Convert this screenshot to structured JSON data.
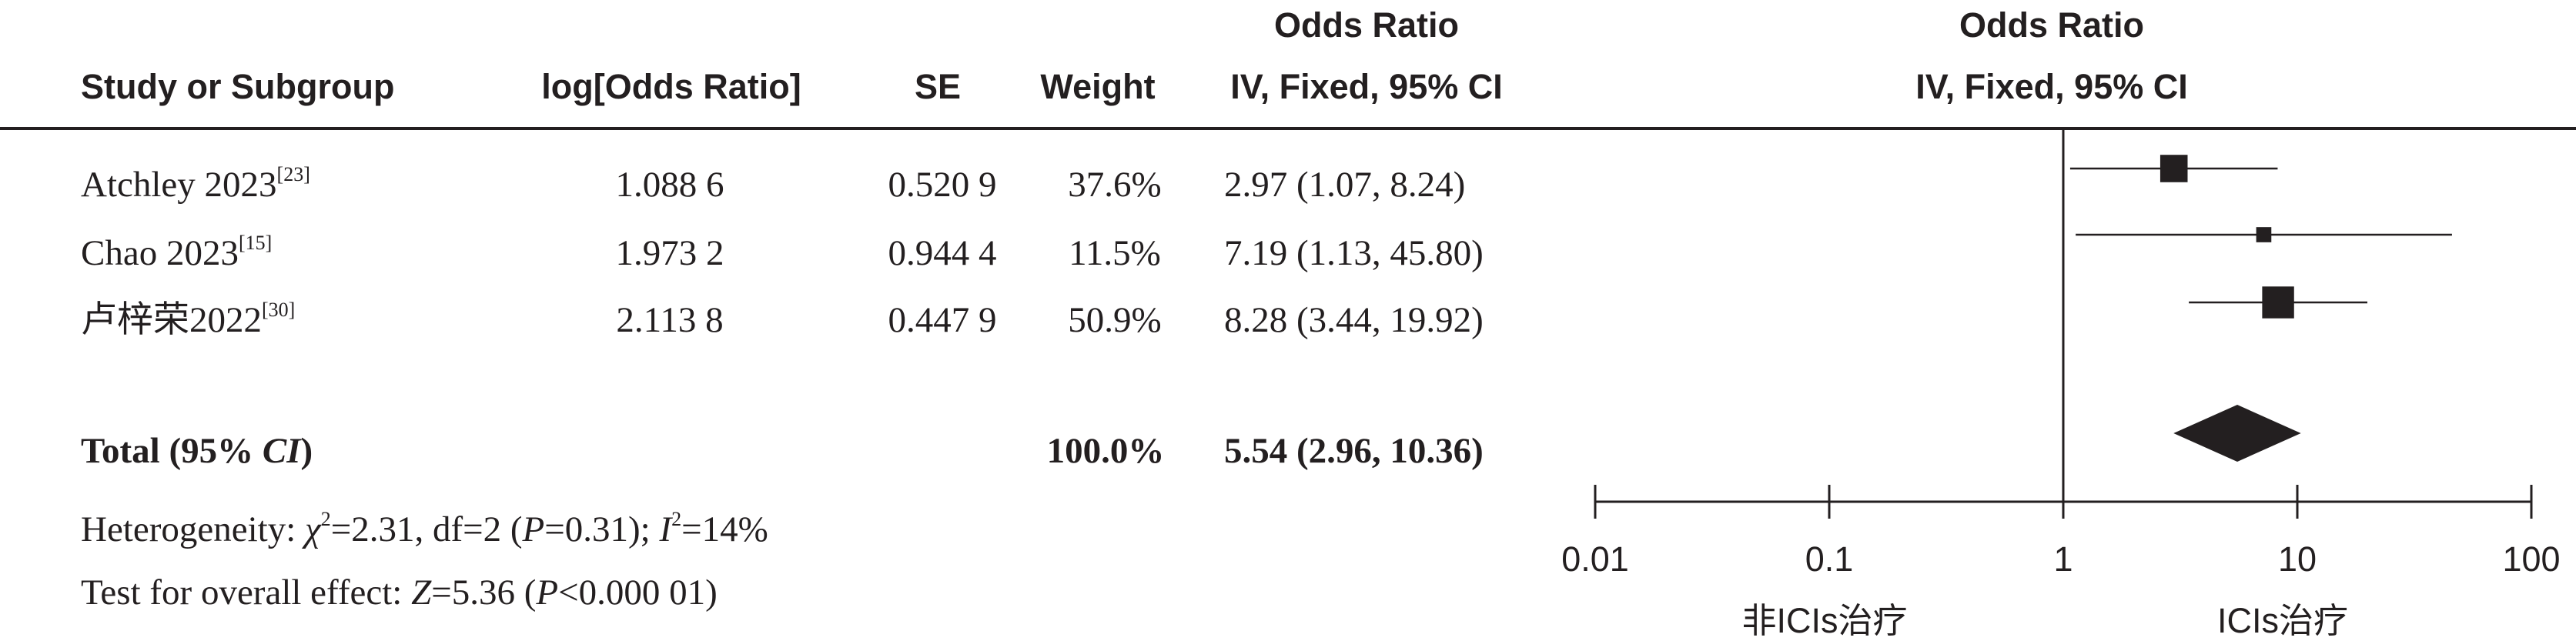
{
  "header": {
    "study_col": "Study or Subgroup",
    "logor_col": "log[Odds Ratio]",
    "se_col": "SE",
    "weight_col": "Weight",
    "or_col_line1": "Odds Ratio",
    "or_col_line2": "IV, Fixed, 95% CI",
    "plot_col_line1": "Odds Ratio",
    "plot_col_line2": "IV, Fixed, 95% CI"
  },
  "rows": [
    {
      "study": "Atchley 2023",
      "ref": "[23]",
      "logor": "1.088 6",
      "se": "0.520 9",
      "weight": "37.6%",
      "ci_text": "2.97 (1.07, 8.24)"
    },
    {
      "study": "Chao 2023",
      "ref": "[15]",
      "logor": "1.973 2",
      "se": "0.944 4",
      "weight": "11.5%",
      "ci_text": "7.19 (1.13, 45.80)"
    },
    {
      "study": "卢梓荣2022",
      "ref": "[30]",
      "logor": "2.113 8",
      "se": "0.447 9",
      "weight": "50.9%",
      "ci_text": "8.28 (3.44, 19.92)"
    }
  ],
  "total": {
    "label": "Total (95% ",
    "label_ci": "CI",
    "label_end": ")",
    "weight": "100.0%",
    "ci_text": "5.54 (2.96, 10.36)"
  },
  "heterogeneity": {
    "p1": "Heterogeneity: ",
    "chi": "χ",
    "chi_sup": "2",
    "p2": "=2.31, df=2 (",
    "p_italic": "P",
    "p3": "=0.31); ",
    "i_italic": "I",
    "i_sup": "2",
    "p4": "=14%"
  },
  "overall": {
    "p1": "Test for overall effect: ",
    "z_italic": "Z",
    "p2": "=5.36 (",
    "p_italic": "P",
    "p3": "<0.000 01)"
  },
  "colors": {
    "ink": "#231f20"
  },
  "chart_data": {
    "type": "forest",
    "x_scale": "log",
    "xlim": [
      0.01,
      100
    ],
    "ticks": [
      {
        "value": 0.01,
        "label": "0.01"
      },
      {
        "value": 0.1,
        "label": "0.1"
      },
      {
        "value": 1,
        "label": "1"
      },
      {
        "value": 10,
        "label": "10"
      },
      {
        "value": 100,
        "label": "100"
      }
    ],
    "favours_left": "非ICIs治疗",
    "favours_right": "ICIs治疗",
    "studies": [
      {
        "name": "Atchley 2023",
        "or": 2.97,
        "lower": 1.07,
        "upper": 8.24,
        "weight": 37.6
      },
      {
        "name": "Chao 2023",
        "or": 7.19,
        "lower": 1.13,
        "upper": 45.8,
        "weight": 11.5
      },
      {
        "name": "卢梓荣2022",
        "or": 8.28,
        "lower": 3.44,
        "upper": 19.92,
        "weight": 50.9
      }
    ],
    "pooled": {
      "or": 5.54,
      "lower": 2.96,
      "upper": 10.36
    }
  }
}
